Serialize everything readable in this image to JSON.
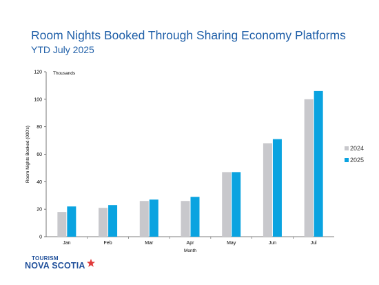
{
  "title": "Room Nights Booked Through Sharing Economy Platforms",
  "subtitle": "YTD July 2025",
  "logo": {
    "line1": "TOURISM",
    "line2": "NOVA SCOTIA"
  },
  "chart_data": {
    "type": "bar",
    "categories": [
      "Jan",
      "Feb",
      "Mar",
      "Apr",
      "May",
      "Jun",
      "Jul"
    ],
    "series": [
      {
        "name": "2024",
        "values": [
          18,
          21,
          26,
          26,
          47,
          68,
          100
        ],
        "color": "#c8c8cc"
      },
      {
        "name": "2025",
        "values": [
          22,
          23,
          27,
          29,
          47,
          71,
          106
        ],
        "color": "#0aa3e0"
      }
    ],
    "xlabel": "Month",
    "ylabel": "Room Nights Booked (000's)",
    "unit_label": "Thousands",
    "ylim": [
      0,
      120
    ],
    "yticks": [
      0,
      20,
      40,
      60,
      80,
      100,
      120
    ],
    "legend": "right"
  }
}
